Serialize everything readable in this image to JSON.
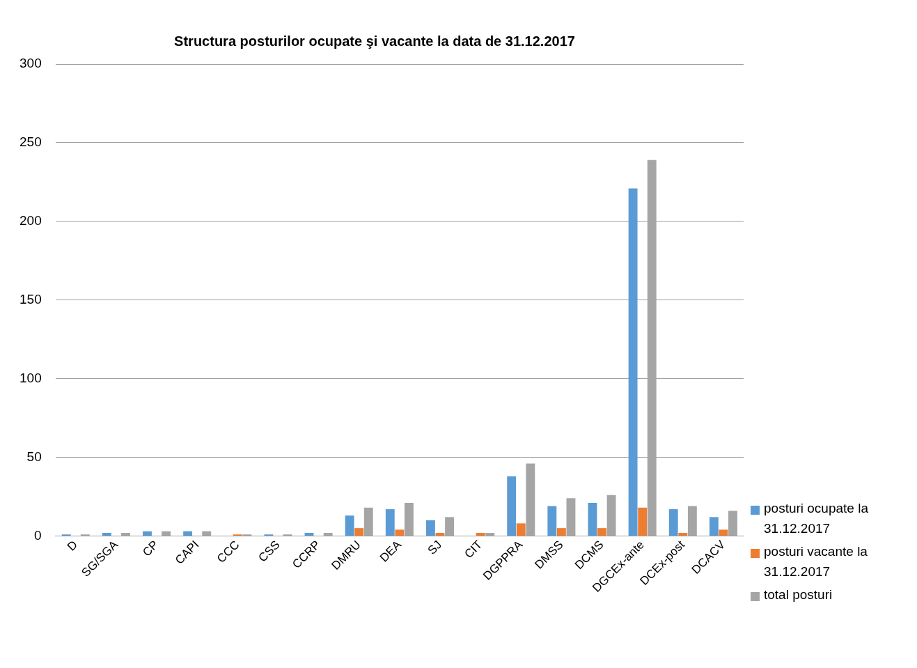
{
  "chart_data": {
    "type": "bar",
    "title": "Structura posturilor ocupate şi vacante la data de 31.12.2017",
    "categories": [
      "D",
      "SG/SGA",
      "CP",
      "CAPI",
      "CCC",
      "CSS",
      "CCRP",
      "DMRU",
      "DEA",
      "SJ",
      "CIT",
      "DGPPRA",
      "DMSS",
      "DCMS",
      "DGCEx-ante",
      "DCEx-post",
      "DCACV"
    ],
    "series": [
      {
        "name": "posturi ocupate la 31.12.2017",
        "color": "#5b9bd5",
        "values": [
          1,
          2,
          3,
          3,
          0,
          1,
          2,
          13,
          17,
          10,
          0,
          38,
          19,
          21,
          221,
          17,
          12
        ]
      },
      {
        "name": "posturi vacante la 31.12.2017",
        "color": "#ed7d31",
        "values": [
          0,
          0,
          0,
          0,
          1,
          0,
          0,
          5,
          4,
          2,
          2,
          8,
          5,
          5,
          18,
          2,
          4
        ]
      },
      {
        "name": "total posturi",
        "color": "#a5a5a5",
        "values": [
          1,
          2,
          3,
          3,
          1,
          1,
          2,
          18,
          21,
          12,
          2,
          46,
          24,
          26,
          239,
          19,
          16
        ]
      }
    ],
    "ylim": [
      0,
      300
    ],
    "yticks": [
      0,
      50,
      100,
      150,
      200,
      250,
      300
    ],
    "grid": "y",
    "legend": "right"
  }
}
